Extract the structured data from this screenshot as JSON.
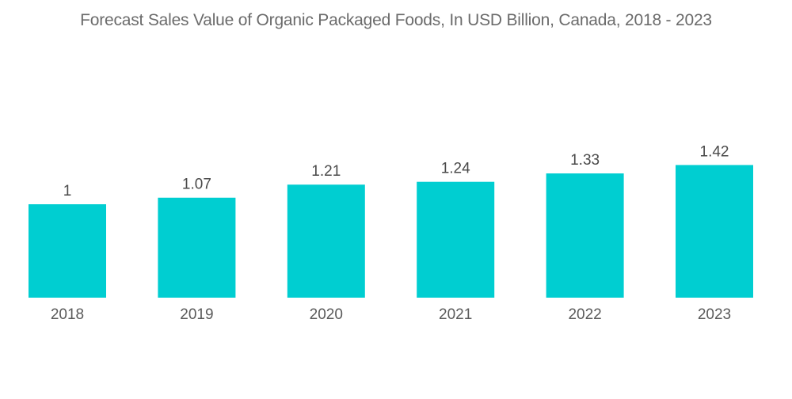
{
  "chart_data": {
    "type": "bar",
    "title": "Forecast Sales Value of Organic Packaged Foods, In USD Billion, Canada, 2018 - 2023",
    "categories": [
      "2018",
      "2019",
      "2020",
      "2021",
      "2022",
      "2023"
    ],
    "values": [
      1,
      1.07,
      1.21,
      1.24,
      1.33,
      1.42
    ],
    "value_labels": [
      "1",
      "1.07",
      "1.21",
      "1.24",
      "1.33",
      "1.42"
    ],
    "xlabel": "",
    "ylabel": "",
    "ylim": [
      0,
      1.42
    ],
    "grid": false,
    "legend": "none",
    "bar_color": "#00ced1"
  }
}
